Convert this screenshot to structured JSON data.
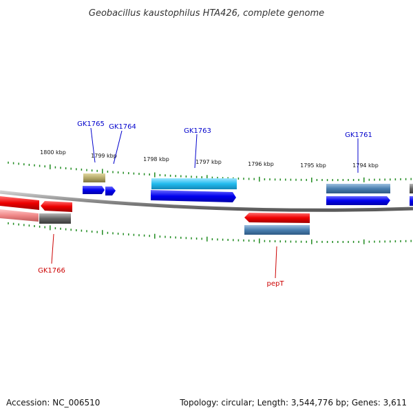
{
  "title": "Geobacillus kaustophilus HTA426, complete genome",
  "ticks": [
    {
      "label": "1800 kbp"
    },
    {
      "label": "1799 kbp"
    },
    {
      "label": "1798 kbp"
    },
    {
      "label": "1797 kbp"
    },
    {
      "label": "1796 kbp"
    },
    {
      "label": "1795 kbp"
    },
    {
      "label": "1794 kbp"
    }
  ],
  "gene_labels": [
    {
      "text": "GK1765",
      "color": "#0000cc"
    },
    {
      "text": "GK1764",
      "color": "#0000cc"
    },
    {
      "text": "GK1763",
      "color": "#0000cc"
    },
    {
      "text": "GK1761",
      "color": "#0000cc"
    },
    {
      "text": "GK1766",
      "color": "#cc0000"
    },
    {
      "text": "pepT",
      "color": "#cc0000"
    }
  ],
  "colors": {
    "forward_cds": "#0000ee",
    "reverse_cds": "#ee0000",
    "feature_cyan": "#22bbee",
    "feature_steelblue": "#4a7fb0",
    "feature_olive": "#b5aa6a",
    "feature_gray": "#666666",
    "feature_pink": "#f08888",
    "tick_green": "#1e8a1e",
    "backbone": "#888888"
  },
  "footer": {
    "accession": "Accession: NC_006510",
    "summary": "Topology: circular; Length: 3,544,776 bp; Genes: 3,611"
  }
}
